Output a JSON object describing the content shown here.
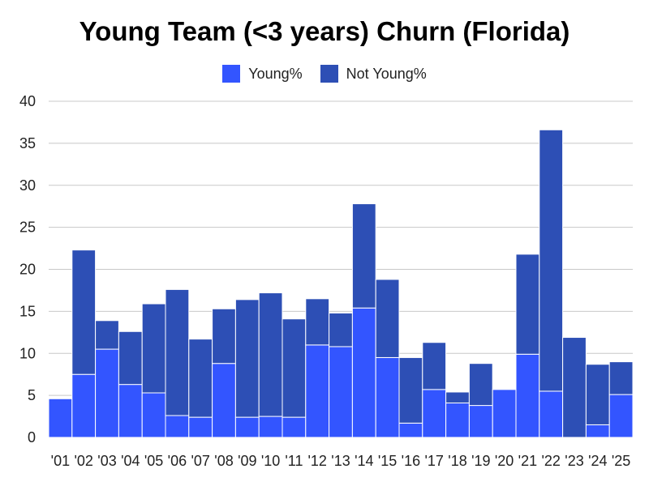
{
  "chart_data": {
    "type": "bar",
    "stacked": true,
    "title": "Young Team (<3 years) Churn (Florida)",
    "xlabel": "",
    "ylabel": "",
    "ylim": [
      0,
      40
    ],
    "yticks": [
      0,
      5,
      10,
      15,
      20,
      25,
      30,
      35,
      40
    ],
    "grid": true,
    "legend_position": "top-center",
    "categories": [
      "'01",
      "'02",
      "'03",
      "'04",
      "'05",
      "'06",
      "'07",
      "'08",
      "'09",
      "'10",
      "'11",
      "'12",
      "'13",
      "'14",
      "'15",
      "'16",
      "'17",
      "'18",
      "'19",
      "'20",
      "'21",
      "'22",
      "'23",
      "'24",
      "'25"
    ],
    "series": [
      {
        "name": "Young%",
        "color": "#3355ff",
        "values": [
          4.6,
          7.5,
          10.5,
          6.3,
          5.3,
          2.6,
          2.4,
          8.8,
          2.4,
          2.5,
          2.4,
          11.0,
          10.8,
          15.4,
          9.5,
          1.7,
          5.7,
          4.1,
          3.8,
          5.7,
          9.9,
          5.5,
          0,
          1.5,
          5.1
        ]
      },
      {
        "name": "Not Young%",
        "color": "#2d4fb5",
        "values": [
          0,
          14.8,
          3.4,
          6.3,
          10.6,
          15.0,
          9.3,
          6.5,
          14.0,
          14.7,
          11.7,
          5.5,
          4.0,
          12.4,
          9.3,
          7.8,
          5.6,
          1.3,
          5.0,
          0,
          11.9,
          31.1,
          11.9,
          7.2,
          3.9
        ]
      }
    ]
  }
}
